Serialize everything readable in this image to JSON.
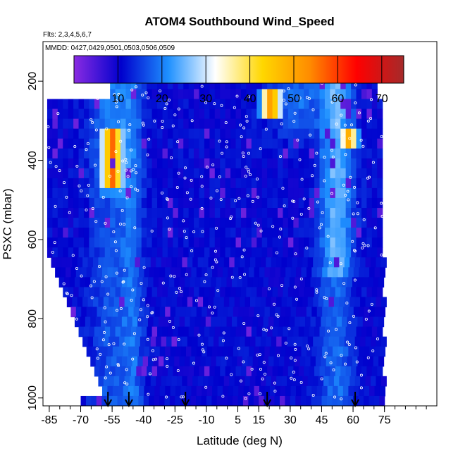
{
  "title": "ATOM4 Southbound Wind_Speed",
  "flights_note": "Flts: 2,3,4,5,6,7",
  "dates_note": "MMDD: 0427,0429,0501,0503,0506,0509",
  "colors": {
    "background": "#ffffff",
    "colorbar_stops": [
      "#8a2be2",
      "#0000cd",
      "#1e90ff",
      "#ffffff",
      "#ffd700",
      "#ff8c00",
      "#ff0000",
      "#a52a2a"
    ],
    "marker": "#ffffff",
    "arrow": "#000000"
  },
  "chart_data": {
    "type": "heatmap",
    "title": "ATOM4 Southbound Wind_Speed",
    "xlabel": "Latitude (deg N)",
    "ylabel": "PSXC (mbar)",
    "xlim": [
      -88,
      100
    ],
    "ylim": [
      1020,
      100
    ],
    "y_reversed": true,
    "x_ticks": [
      -85,
      -70,
      -55,
      -40,
      -25,
      -10,
      5,
      15,
      30,
      45,
      60,
      75
    ],
    "y_ticks": [
      200,
      400,
      600,
      800,
      1000
    ],
    "colorbar": {
      "ticks": [
        10,
        20,
        30,
        40,
        50,
        60,
        70
      ],
      "range": [
        0,
        75
      ],
      "placement": "top"
    },
    "profile_arrows_lat": [
      -57,
      -47,
      -20,
      19,
      61
    ],
    "jet_features": [
      {
        "lat": -55,
        "pressure_range": [
          330,
          460
        ],
        "speed": 58
      },
      {
        "lat": 21,
        "pressure_range": [
          220,
          290
        ],
        "speed": 55
      },
      {
        "lat": 58,
        "pressure_range": [
          310,
          360
        ],
        "speed": 50
      }
    ]
  }
}
